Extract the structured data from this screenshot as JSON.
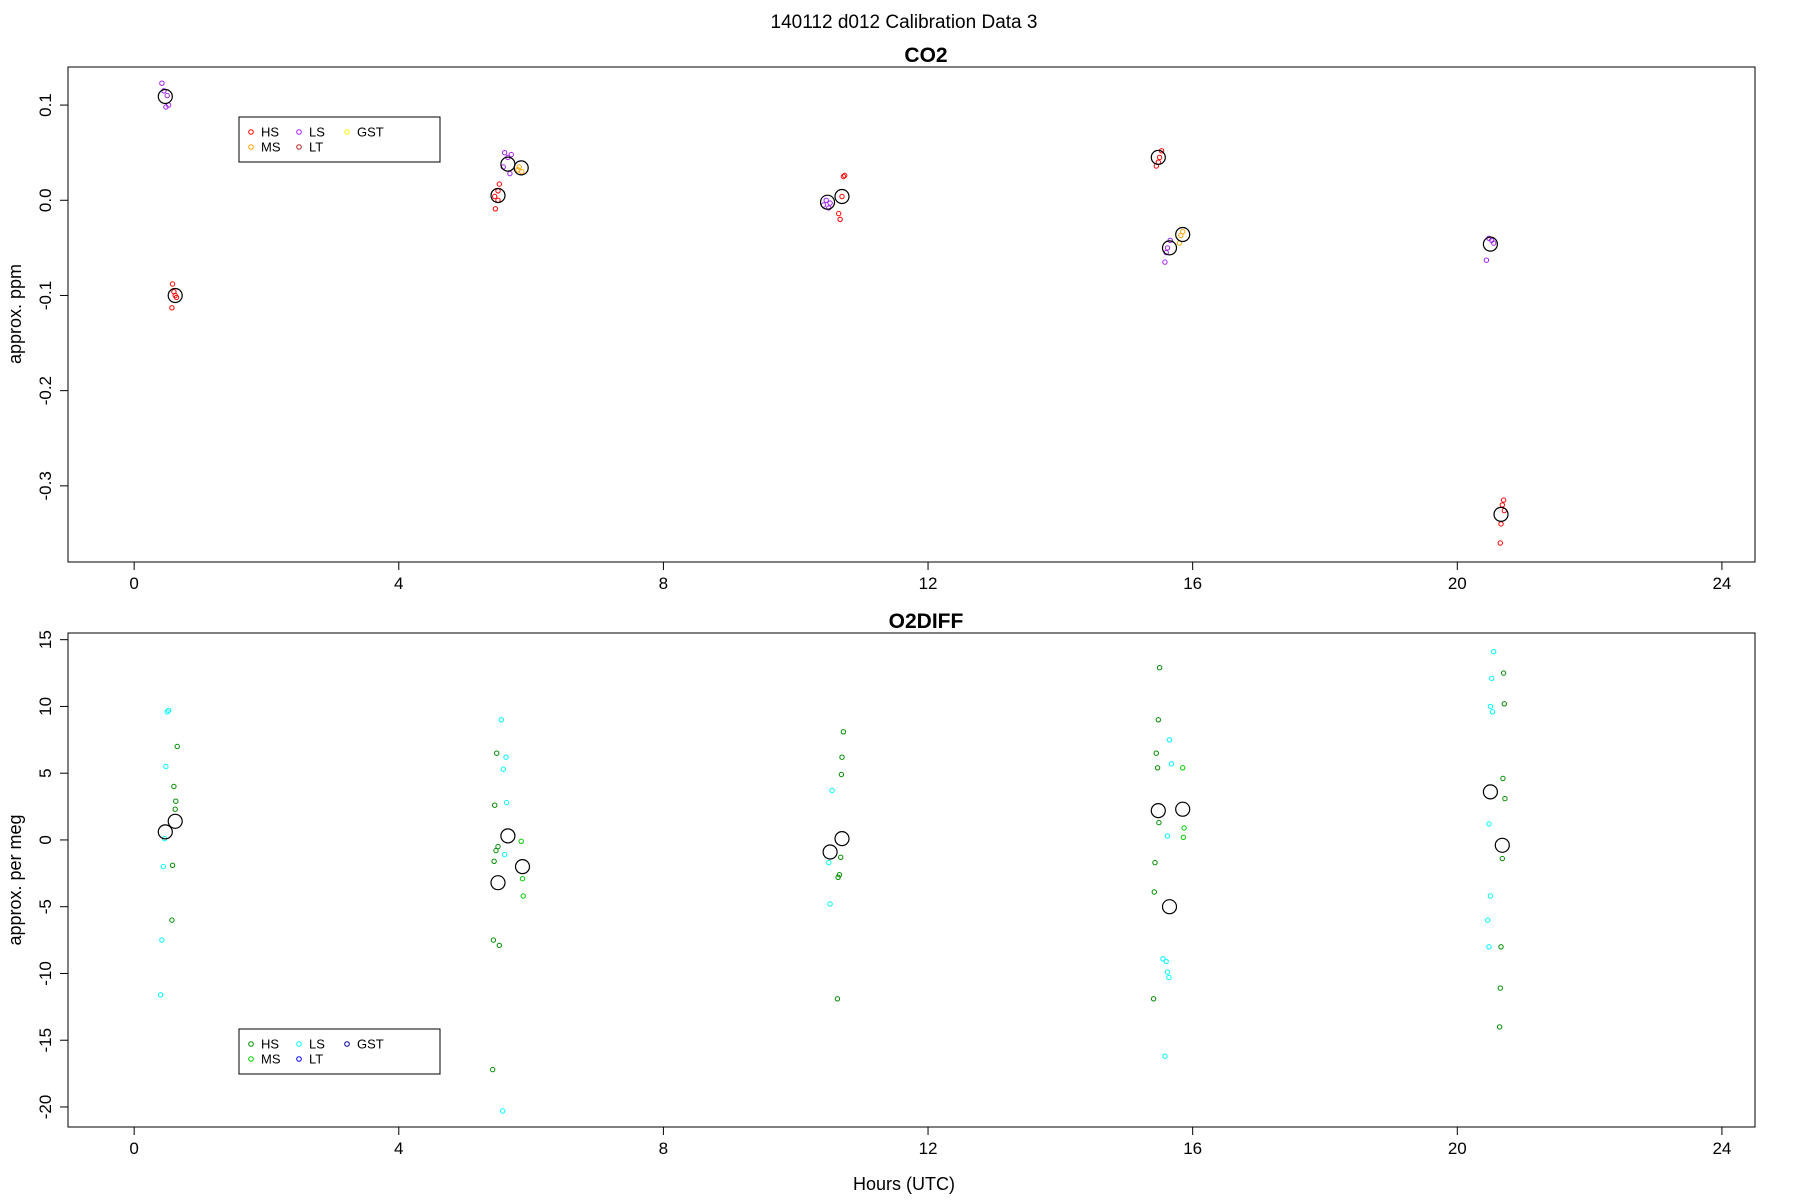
{
  "chart_data": {
    "suptitle": "140112   d012   Calibration Data 3",
    "xlabel": "Hours (UTC)",
    "xlim": [
      -1.0,
      24.5
    ],
    "xticks": [
      0,
      4,
      8,
      12,
      16,
      20,
      24
    ],
    "panels": [
      {
        "type": "scatter",
        "title": "CO2",
        "ylabel": "approx. ppm",
        "ylim": [
          -0.38,
          0.14
        ],
        "yticks": [
          0.1,
          0.0,
          -0.1,
          -0.2,
          -0.3
        ],
        "ytick_labels": [
          "0.1",
          "0.0",
          "-0.1",
          "-0.2",
          "-0.3"
        ],
        "legend": {
          "position": "top-left",
          "entries": [
            {
              "label": "HS",
              "color": "#ff0000"
            },
            {
              "label": "MS",
              "color": "#ffa500"
            },
            {
              "label": "LS",
              "color": "#a020f0"
            },
            {
              "label": "LT",
              "color": "#b22222"
            },
            {
              "label": "GST",
              "color": "#ffff00"
            }
          ]
        },
        "series": [
          {
            "name": "HS",
            "color": "#ff0000",
            "points": [
              [
                0.58,
                -0.088
              ],
              [
                0.6,
                -0.096
              ],
              [
                0.62,
                -0.1
              ],
              [
                0.57,
                -0.113
              ],
              [
                0.64,
                -0.102
              ],
              [
                5.45,
                0.004
              ],
              [
                5.5,
                0.01
              ],
              [
                5.52,
                0.017
              ],
              [
                5.46,
                -0.009
              ],
              [
                5.5,
                0.0
              ],
              [
                10.65,
                -0.014
              ],
              [
                10.67,
                -0.02
              ],
              [
                10.72,
                0.025
              ],
              [
                10.74,
                0.026
              ],
              [
                10.7,
                0.004
              ],
              [
                15.45,
                0.036
              ],
              [
                15.5,
                0.045
              ],
              [
                15.53,
                0.052
              ],
              [
                15.48,
                0.04
              ],
              [
                20.7,
                -0.315
              ],
              [
                20.68,
                -0.32
              ],
              [
                20.66,
                -0.34
              ],
              [
                20.65,
                -0.36
              ],
              [
                20.71,
                -0.326
              ]
            ]
          },
          {
            "name": "MS",
            "color": "#ffa500",
            "points": [
              [
                5.82,
                0.035
              ],
              [
                5.86,
                0.03
              ],
              [
                5.8,
                0.032
              ],
              [
                15.82,
                -0.037
              ],
              [
                15.85,
                -0.033
              ],
              [
                15.8,
                -0.045
              ]
            ]
          },
          {
            "name": "LS",
            "color": "#a020f0",
            "points": [
              [
                0.42,
                0.123
              ],
              [
                0.45,
                0.115
              ],
              [
                0.48,
                0.098
              ],
              [
                0.5,
                0.11
              ],
              [
                0.52,
                0.1
              ],
              [
                5.6,
                0.05
              ],
              [
                5.65,
                0.045
              ],
              [
                5.68,
                0.028
              ],
              [
                5.58,
                0.035
              ],
              [
                5.7,
                0.048
              ],
              [
                10.42,
                -0.005
              ],
              [
                10.46,
                0.0
              ],
              [
                10.5,
                -0.008
              ],
              [
                10.52,
                -0.003
              ],
              [
                15.58,
                -0.065
              ],
              [
                15.62,
                -0.05
              ],
              [
                15.66,
                -0.042
              ],
              [
                15.6,
                -0.055
              ],
              [
                20.44,
                -0.063
              ],
              [
                20.48,
                -0.04
              ],
              [
                20.52,
                -0.042
              ],
              [
                20.55,
                -0.045
              ]
            ]
          },
          {
            "name": "mean",
            "color": "#000000",
            "marker": "open-circle-large",
            "points": [
              [
                0.47,
                0.109
              ],
              [
                0.62,
                -0.1
              ],
              [
                5.5,
                0.005
              ],
              [
                5.65,
                0.038
              ],
              [
                5.85,
                0.034
              ],
              [
                10.48,
                -0.002
              ],
              [
                10.7,
                0.004
              ],
              [
                15.48,
                0.045
              ],
              [
                15.65,
                -0.05
              ],
              [
                15.85,
                -0.036
              ],
              [
                20.5,
                -0.046
              ],
              [
                20.66,
                -0.33
              ]
            ]
          }
        ]
      },
      {
        "type": "scatter",
        "title": "O2DIFF",
        "ylabel": "approx. per meg",
        "ylim": [
          -21.5,
          15.5
        ],
        "yticks": [
          15,
          10,
          5,
          0,
          -5,
          -10,
          -15,
          -20
        ],
        "ytick_labels": [
          "15",
          "10",
          "5",
          "0",
          "-5",
          "-10",
          "-15",
          "-20"
        ],
        "legend": {
          "position": "bottom-left",
          "entries": [
            {
              "label": "HS",
              "color": "#008b00"
            },
            {
              "label": "MS",
              "color": "#00cd00"
            },
            {
              "label": "LS",
              "color": "#00ffff"
            },
            {
              "label": "LT",
              "color": "#0000ff"
            },
            {
              "label": "GST",
              "color": "#00008b"
            }
          ]
        },
        "series": [
          {
            "name": "HS",
            "color": "#008b00",
            "points": [
              [
                0.65,
                7.0
              ],
              [
                0.6,
                4.0
              ],
              [
                0.63,
                2.9
              ],
              [
                0.62,
                2.3
              ],
              [
                0.58,
                -1.9
              ],
              [
                0.57,
                -6.0
              ],
              [
                5.48,
                6.5
              ],
              [
                5.45,
                2.6
              ],
              [
                5.5,
                -0.5
              ],
              [
                5.47,
                -0.8
              ],
              [
                5.44,
                -1.6
              ],
              [
                5.43,
                -7.5
              ],
              [
                5.52,
                -7.9
              ],
              [
                5.42,
                -17.2
              ],
              [
                10.72,
                8.1
              ],
              [
                10.7,
                6.2
              ],
              [
                10.69,
                4.9
              ],
              [
                10.68,
                -1.3
              ],
              [
                10.66,
                -2.6
              ],
              [
                10.64,
                -2.8
              ],
              [
                10.63,
                -11.9
              ],
              [
                15.5,
                12.9
              ],
              [
                15.48,
                9.0
              ],
              [
                15.45,
                6.5
              ],
              [
                15.47,
                5.4
              ],
              [
                15.49,
                1.3
              ],
              [
                15.43,
                -1.7
              ],
              [
                15.42,
                -3.9
              ],
              [
                15.41,
                -11.9
              ],
              [
                20.7,
                12.5
              ],
              [
                20.71,
                10.2
              ],
              [
                20.69,
                4.6
              ],
              [
                20.72,
                3.1
              ],
              [
                20.68,
                -1.4
              ],
              [
                20.66,
                -8.0
              ],
              [
                20.65,
                -11.1
              ],
              [
                20.64,
                -14.0
              ]
            ]
          },
          {
            "name": "MS",
            "color": "#00cd00",
            "points": [
              [
                5.85,
                -0.1
              ],
              [
                5.87,
                -2.9
              ],
              [
                5.88,
                -4.2
              ],
              [
                15.85,
                5.4
              ],
              [
                15.87,
                0.9
              ],
              [
                15.86,
                0.2
              ]
            ]
          },
          {
            "name": "LS",
            "color": "#00ffff",
            "points": [
              [
                0.52,
                9.7
              ],
              [
                0.5,
                9.6
              ],
              [
                0.48,
                5.5
              ],
              [
                0.46,
                0.1
              ],
              [
                0.44,
                -2.0
              ],
              [
                0.42,
                -7.5
              ],
              [
                0.4,
                -11.6
              ],
              [
                5.55,
                9.0
              ],
              [
                5.62,
                6.2
              ],
              [
                5.58,
                5.3
              ],
              [
                5.63,
                2.8
              ],
              [
                5.6,
                -1.1
              ],
              [
                5.57,
                -20.3
              ],
              [
                10.55,
                3.7
              ],
              [
                10.5,
                -1.7
              ],
              [
                10.52,
                -4.8
              ],
              [
                15.65,
                7.5
              ],
              [
                15.68,
                5.7
              ],
              [
                15.62,
                0.3
              ],
              [
                15.55,
                -8.9
              ],
              [
                15.6,
                -9.1
              ],
              [
                15.62,
                -9.9
              ],
              [
                15.64,
                -10.3
              ],
              [
                15.58,
                -16.2
              ],
              [
                20.55,
                14.1
              ],
              [
                20.52,
                12.1
              ],
              [
                20.5,
                10.0
              ],
              [
                20.53,
                9.6
              ],
              [
                20.48,
                1.2
              ],
              [
                20.5,
                -4.2
              ],
              [
                20.46,
                -6.0
              ],
              [
                20.48,
                -8.0
              ]
            ]
          },
          {
            "name": "mean",
            "color": "#000000",
            "marker": "open-circle-large",
            "points": [
              [
                0.47,
                0.6
              ],
              [
                0.62,
                1.4
              ],
              [
                5.5,
                -3.2
              ],
              [
                5.65,
                0.3
              ],
              [
                5.87,
                -2.0
              ],
              [
                10.52,
                -0.9
              ],
              [
                10.7,
                0.1
              ],
              [
                15.48,
                2.2
              ],
              [
                15.65,
                -5.0
              ],
              [
                15.85,
                2.3
              ],
              [
                20.5,
                3.6
              ],
              [
                20.68,
                -0.4
              ]
            ]
          }
        ]
      }
    ]
  }
}
